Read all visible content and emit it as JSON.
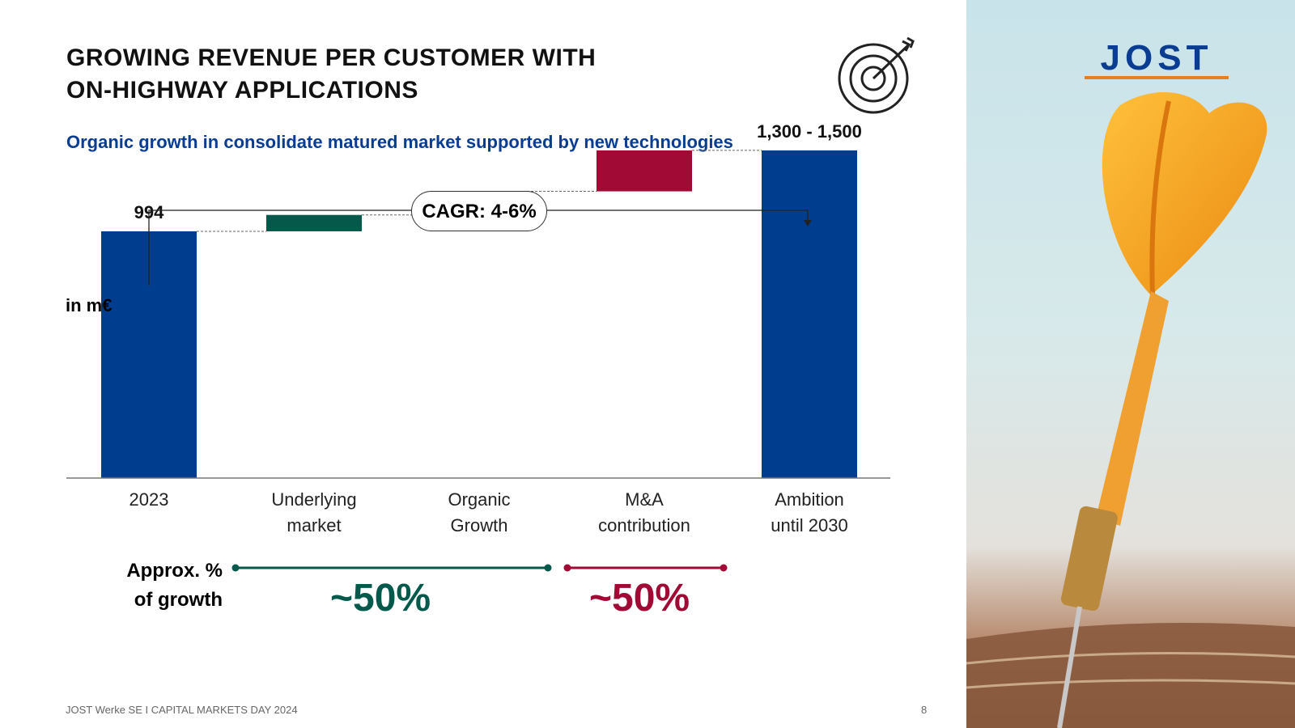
{
  "title_line1": "GROWING REVENUE PER CUSTOMER WITH",
  "title_line2": "ON-HIGHWAY APPLICATIONS",
  "subtitle": "Organic growth in consolidate matured market supported by new technologies",
  "unit_label": "in m€",
  "cagr_label": "CAGR: 4-6%",
  "growth_label_line1": "Approx. %",
  "growth_label_line2": "of growth",
  "growth_organic_pct": "~50%",
  "growth_ma_pct": "~50%",
  "footer": "JOST Werke SE I CAPITAL MARKETS DAY 2024",
  "page_number": "8",
  "logo_text": "JOST",
  "icons": {
    "target": "target-arrow-icon",
    "dart": "dart-photo"
  },
  "colors": {
    "blue": "#003d8f",
    "green": "#05594a",
    "red": "#a00a35",
    "orange": "#e77f1e"
  },
  "chart_data": {
    "type": "bar",
    "subtype": "waterfall",
    "unit": "in m€",
    "categories": [
      [
        "2023"
      ],
      [
        "Underlying",
        "market"
      ],
      [
        "Organic",
        "Growth"
      ],
      [
        "M&A",
        "contribution"
      ],
      [
        "Ambition",
        "until 2030"
      ]
    ],
    "bars": [
      {
        "kind": "total",
        "start": 0,
        "end": 994,
        "label": "994",
        "color": "#003d8f"
      },
      {
        "kind": "delta",
        "start": 994,
        "end": 1060,
        "label": "",
        "color": "#05594a"
      },
      {
        "kind": "delta",
        "start": 1060,
        "end": 1155,
        "label": "",
        "color": "#05594a"
      },
      {
        "kind": "delta",
        "start": 1155,
        "end": 1320,
        "label": "",
        "color": "#a00a35"
      },
      {
        "kind": "total",
        "start": 0,
        "end": 1320,
        "label": "1,300 - 1,500",
        "color": "#003d8f"
      }
    ],
    "ylim": [
      0,
      1600
    ],
    "grid": false,
    "legend": "none"
  }
}
